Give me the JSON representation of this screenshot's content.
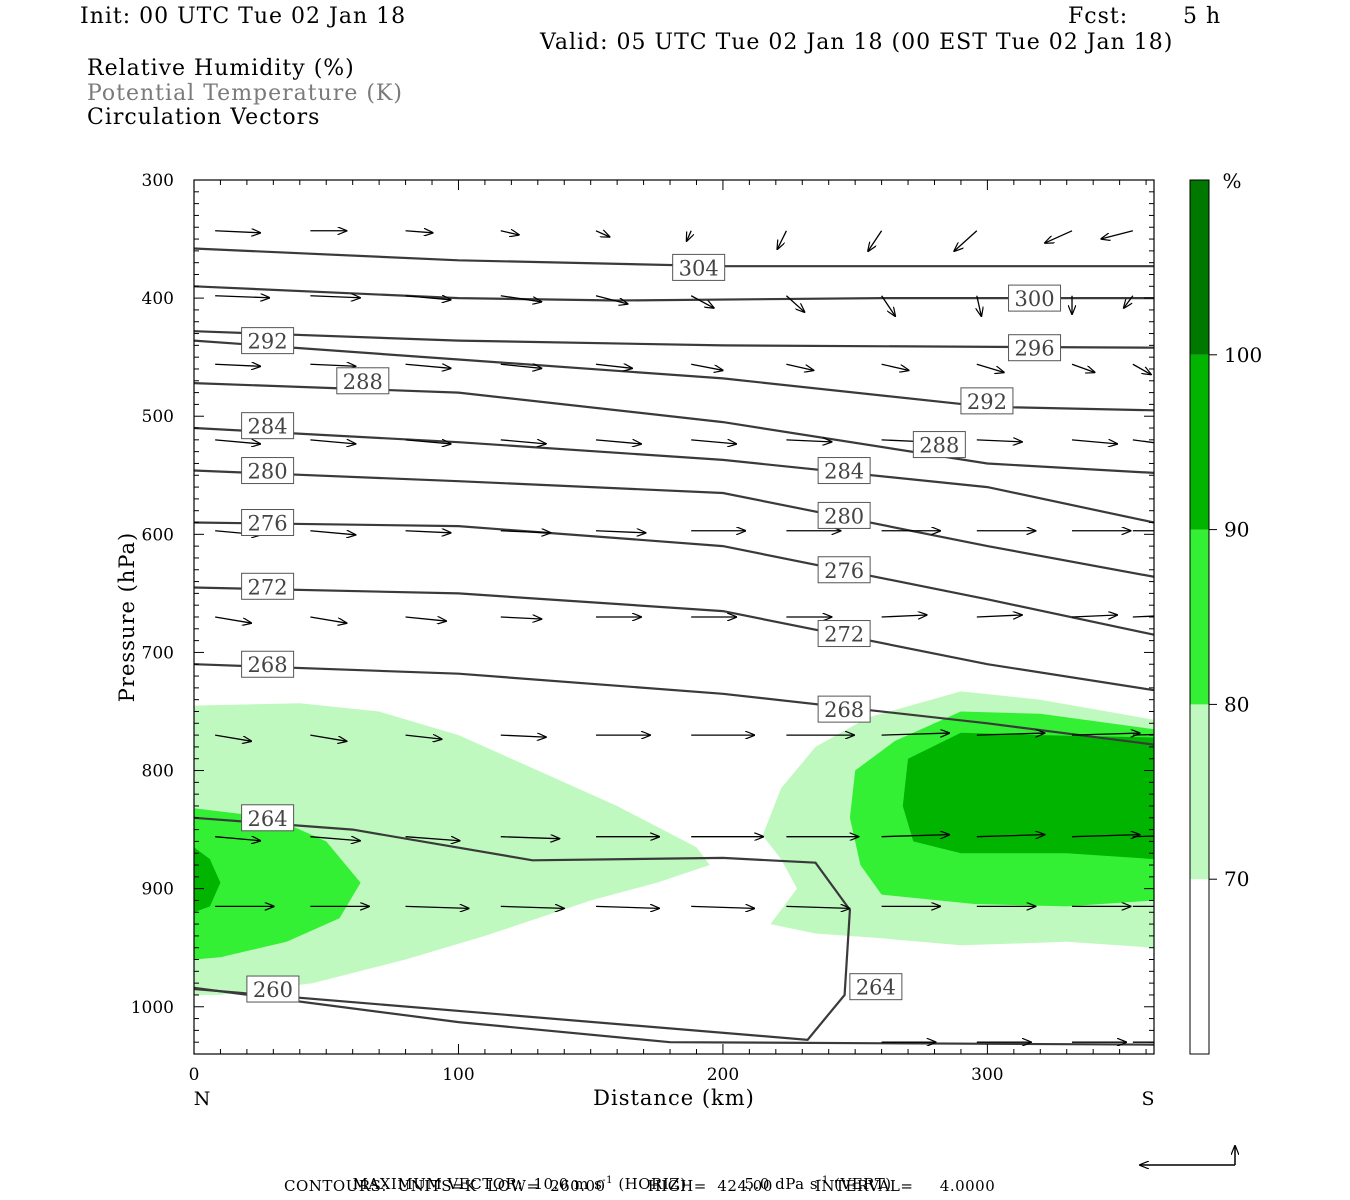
{
  "header": {
    "init": "Init: 00 UTC Tue 02 Jan 18",
    "fcst_label": "Fcst:",
    "fcst_value": "5 h",
    "valid": "Valid: 05 UTC Tue 02 Jan 18 (00 EST Tue 02 Jan 18)",
    "legend_lines": [
      "Relative Humidity (%)",
      "Potential Temperature (K)",
      "Circulation Vectors"
    ]
  },
  "colors": {
    "rh_70_80": "#bff9bf",
    "rh_80_90": "#34f034",
    "rh_90_100": "#00b400",
    "rh_100": "#007800",
    "contour": "#3a3a3a"
  },
  "chart_data": {
    "type": "cross-section",
    "xlabel": "Distance (km)",
    "ylabel": "Pressure (hPa)",
    "x_range": [
      0,
      363
    ],
    "y_range": [
      300,
      1040
    ],
    "y_scale": "linear, inverted",
    "x_ticks": [
      "0",
      "100",
      "200",
      "300"
    ],
    "y_ticks": [
      "300",
      "400",
      "500",
      "600",
      "700",
      "800",
      "900",
      "1000"
    ],
    "x_end_labels": {
      "left": "N",
      "right": "S"
    },
    "colorbar": {
      "unit": "%",
      "levels": [
        "70",
        "80",
        "90",
        "100"
      ]
    },
    "rh_shaded_regions": [
      {
        "level": 70,
        "points": [
          [
            0,
            745
          ],
          [
            40,
            743
          ],
          [
            70,
            750
          ],
          [
            100,
            770
          ],
          [
            130,
            800
          ],
          [
            160,
            830
          ],
          [
            190,
            865
          ],
          [
            195,
            880
          ],
          [
            175,
            895
          ],
          [
            150,
            910
          ],
          [
            130,
            925
          ],
          [
            110,
            940
          ],
          [
            80,
            960
          ],
          [
            45,
            980
          ],
          [
            10,
            990
          ],
          [
            0,
            990
          ]
        ]
      },
      {
        "level": 80,
        "points": [
          [
            0,
            832
          ],
          [
            30,
            840
          ],
          [
            50,
            860
          ],
          [
            63,
            895
          ],
          [
            55,
            925
          ],
          [
            35,
            945
          ],
          [
            10,
            958
          ],
          [
            0,
            960
          ]
        ]
      },
      {
        "level": 90,
        "points": [
          [
            0,
            865
          ],
          [
            6,
            875
          ],
          [
            10,
            895
          ],
          [
            6,
            915
          ],
          [
            0,
            920
          ]
        ]
      },
      {
        "level": 70,
        "points": [
          [
            218,
            930
          ],
          [
            228,
            900
          ],
          [
            222,
            875
          ],
          [
            215,
            855
          ],
          [
            222,
            815
          ],
          [
            235,
            780
          ],
          [
            255,
            755
          ],
          [
            290,
            733
          ],
          [
            320,
            740
          ],
          [
            363,
            757
          ],
          [
            363,
            950
          ],
          [
            330,
            945
          ],
          [
            290,
            948
          ],
          [
            260,
            942
          ],
          [
            235,
            938
          ]
        ]
      },
      {
        "level": 80,
        "points": [
          [
            252,
            880
          ],
          [
            248,
            840
          ],
          [
            250,
            800
          ],
          [
            265,
            775
          ],
          [
            290,
            750
          ],
          [
            320,
            752
          ],
          [
            363,
            765
          ],
          [
            363,
            910
          ],
          [
            330,
            915
          ],
          [
            295,
            913
          ],
          [
            260,
            905
          ]
        ]
      },
      {
        "level": 90,
        "points": [
          [
            272,
            860
          ],
          [
            268,
            830
          ],
          [
            270,
            790
          ],
          [
            290,
            768
          ],
          [
            320,
            770
          ],
          [
            363,
            772
          ],
          [
            363,
            875
          ],
          [
            330,
            870
          ],
          [
            290,
            870
          ]
        ]
      }
    ],
    "theta_contours": [
      {
        "label": "304",
        "label_at": [
          181,
          374
        ],
        "points": [
          [
            0,
            358
          ],
          [
            100,
            368
          ],
          [
            200,
            373
          ],
          [
            363,
            373
          ]
        ]
      },
      {
        "label": "300",
        "label_at": [
          308,
          400
        ],
        "points": [
          [
            0,
            390
          ],
          [
            100,
            400
          ],
          [
            160,
            402
          ],
          [
            260,
            400
          ],
          [
            363,
            400
          ]
        ]
      },
      {
        "label": "296",
        "label_at": [
          308,
          442
        ],
        "points": [
          [
            0,
            428
          ],
          [
            100,
            436
          ],
          [
            200,
            440
          ],
          [
            363,
            442
          ]
        ]
      },
      {
        "label": "292",
        "label_at": [
          18,
          436
        ],
        "points": [
          [
            0,
            436
          ],
          [
            100,
            452
          ],
          [
            200,
            468
          ],
          [
            300,
            492
          ],
          [
            363,
            495
          ]
        ]
      },
      {
        "label": "288",
        "label_at": [
          54,
          470
        ],
        "points": [
          [
            0,
            472
          ],
          [
            100,
            480
          ],
          [
            200,
            505
          ],
          [
            300,
            540
          ],
          [
            363,
            548
          ]
        ]
      },
      {
        "label": "284",
        "label_at": [
          18,
          508
        ],
        "points": [
          [
            0,
            510
          ],
          [
            100,
            522
          ],
          [
            200,
            537
          ],
          [
            300,
            560
          ],
          [
            363,
            590
          ]
        ]
      },
      {
        "label": "280",
        "label_at": [
          18,
          546
        ],
        "points": [
          [
            0,
            546
          ],
          [
            100,
            555
          ],
          [
            200,
            565
          ],
          [
            300,
            610
          ],
          [
            363,
            636
          ]
        ]
      },
      {
        "label": "276",
        "label_at": [
          18,
          590
        ],
        "points": [
          [
            0,
            590
          ],
          [
            100,
            593
          ],
          [
            200,
            610
          ],
          [
            300,
            655
          ],
          [
            363,
            685
          ]
        ]
      },
      {
        "label": "272",
        "label_at": [
          18,
          644
        ],
        "points": [
          [
            0,
            645
          ],
          [
            100,
            650
          ],
          [
            200,
            665
          ],
          [
            300,
            710
          ],
          [
            363,
            732
          ]
        ]
      },
      {
        "label": "268",
        "label_at": [
          18,
          710
        ],
        "points": [
          [
            0,
            710
          ],
          [
            100,
            718
          ],
          [
            200,
            735
          ],
          [
            300,
            760
          ],
          [
            363,
            778
          ]
        ]
      },
      {
        "label": "264",
        "label_at": [
          18,
          840
        ],
        "points": [
          [
            0,
            840
          ],
          [
            60,
            850
          ],
          [
            128,
            876
          ],
          [
            200,
            874
          ],
          [
            235,
            878
          ],
          [
            248,
            918
          ],
          [
            246,
            990
          ],
          [
            232,
            1028
          ],
          [
            0,
            985
          ]
        ]
      },
      {
        "label": "260",
        "label_at": [
          20,
          985
        ],
        "points": [
          [
            0,
            984
          ],
          [
            100,
            1013
          ],
          [
            180,
            1030
          ],
          [
            363,
            1032
          ]
        ]
      }
    ],
    "contour_labels_extra": [
      {
        "label": "292",
        "at": [
          290,
          487
        ]
      },
      {
        "label": "288",
        "at": [
          272,
          524
        ]
      },
      {
        "label": "284",
        "at": [
          236,
          546
        ]
      },
      {
        "label": "280",
        "at": [
          236,
          584
        ]
      },
      {
        "label": "276",
        "at": [
          236,
          630
        ]
      },
      {
        "label": "272",
        "at": [
          236,
          684
        ]
      },
      {
        "label": "268",
        "at": [
          236,
          748
        ]
      },
      {
        "label": "264",
        "at": [
          248,
          983
        ]
      }
    ],
    "vector_rows": [
      {
        "p": 343,
        "u": [
          1.0,
          0.8,
          0.6,
          0.4,
          0.3,
          -0.1,
          -0.2,
          -0.3,
          -0.5,
          -0.6,
          -0.7
        ],
        "w": [
          0.1,
          0.0,
          0.1,
          0.2,
          0.3,
          0.5,
          0.9,
          1.0,
          1.0,
          0.6,
          0.4
        ]
      },
      {
        "p": 398,
        "u": [
          1.2,
          1.1,
          1.0,
          0.9,
          0.7,
          0.5,
          0.4,
          0.3,
          0.1,
          0.0,
          -0.2
        ],
        "w": [
          0.1,
          0.1,
          0.2,
          0.3,
          0.4,
          0.6,
          0.8,
          1.0,
          1.0,
          0.9,
          0.6
        ]
      },
      {
        "p": 456,
        "u": [
          1.0,
          1.0,
          1.0,
          0.9,
          0.8,
          0.7,
          0.6,
          0.6,
          0.6,
          0.5,
          0.4
        ],
        "w": [
          0.1,
          0.1,
          0.2,
          0.2,
          0.2,
          0.3,
          0.3,
          0.3,
          0.4,
          0.4,
          0.5
        ]
      },
      {
        "p": 520,
        "u": [
          1.0,
          1.0,
          1.0,
          1.0,
          1.0,
          1.0,
          1.0,
          1.0,
          1.0,
          1.0,
          1.0
        ],
        "w": [
          0.2,
          0.2,
          0.2,
          0.2,
          0.2,
          0.2,
          0.1,
          0.1,
          0.1,
          0.2,
          0.3
        ]
      },
      {
        "p": 597,
        "u": [
          1.0,
          1.0,
          1.0,
          1.1,
          1.1,
          1.2,
          1.2,
          1.3,
          1.3,
          1.3,
          1.4
        ],
        "w": [
          0.2,
          0.2,
          0.1,
          0.1,
          0.1,
          0.0,
          0.0,
          0.0,
          0.0,
          0.0,
          0.0
        ]
      },
      {
        "p": 670,
        "u": [
          0.8,
          0.8,
          0.9,
          0.9,
          1.0,
          1.0,
          1.0,
          1.0,
          1.0,
          1.0,
          1.0
        ],
        "w": [
          0.3,
          0.3,
          0.2,
          0.1,
          0.0,
          0.0,
          0.0,
          -0.1,
          -0.1,
          -0.1,
          -0.1
        ]
      },
      {
        "p": 770,
        "u": [
          0.8,
          0.8,
          0.8,
          1.0,
          1.2,
          1.4,
          1.5,
          1.5,
          1.5,
          1.5,
          1.5
        ],
        "w": [
          0.3,
          0.3,
          0.2,
          0.1,
          0.0,
          0.0,
          0.0,
          -0.1,
          -0.1,
          -0.1,
          -0.1
        ]
      },
      {
        "p": 856,
        "u": [
          1.0,
          1.1,
          1.2,
          1.3,
          1.4,
          1.6,
          1.6,
          1.5,
          1.5,
          1.5,
          1.5
        ],
        "w": [
          0.2,
          0.2,
          0.2,
          0.1,
          0.0,
          0.0,
          0.0,
          -0.1,
          -0.1,
          -0.1,
          -0.1
        ]
      },
      {
        "p": 915,
        "u": [
          1.3,
          1.3,
          1.4,
          1.4,
          1.4,
          1.4,
          1.4,
          1.3,
          1.3,
          1.3,
          1.3
        ],
        "w": [
          0.0,
          0.0,
          0.1,
          0.1,
          0.1,
          0.1,
          0.1,
          0.0,
          0.0,
          0.0,
          0.0
        ]
      },
      {
        "p": 1030,
        "u": [
          0.0,
          0.0,
          0.0,
          0.0,
          0.0,
          0.0,
          0.0,
          1.2,
          1.2,
          1.2,
          1.2
        ],
        "w": [
          0.0,
          0.0,
          0.0,
          0.0,
          0.0,
          0.0,
          0.0,
          0.0,
          0.0,
          0.0,
          0.0
        ]
      }
    ],
    "vector_x": [
      8,
      44,
      80,
      116,
      152,
      188,
      224,
      260,
      296,
      332,
      355
    ]
  },
  "footer": {
    "max_vector_label": "MAXIMUM VECTOR:",
    "max_vector_horiz": "10.0 m s",
    "max_vector_horiz_unit": "(HORIZ)",
    "max_vector_vert": "5.0 dPa s",
    "max_vector_vert_unit": "(VERT)",
    "sup": "-1",
    "contours_line": "CONTOURS:  UNITS=K  LOW=  260.00        HIGH=  424.00        INTERVAL=     4.0000"
  }
}
